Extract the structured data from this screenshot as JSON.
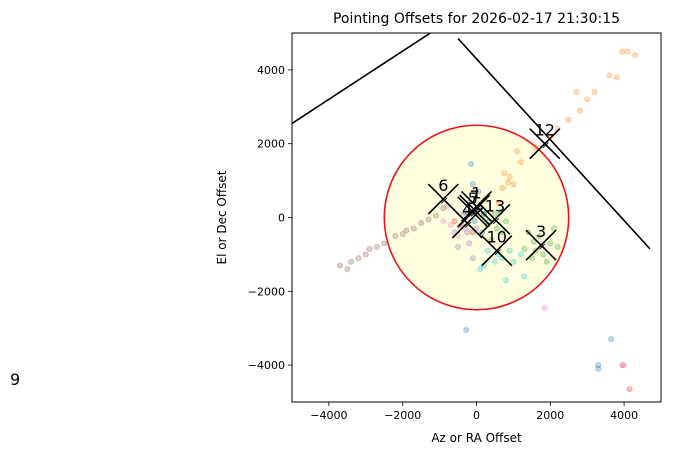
{
  "side_label": "9",
  "chart_data": {
    "type": "scatter",
    "title": "Pointing Offsets for 2026-02-17 21:30:15",
    "xlabel": "Az or RA Offset",
    "ylabel": "El or Dec Offset",
    "xlim": [
      -5000,
      5000
    ],
    "ylim": [
      -5000,
      5000
    ],
    "xticks": [
      -4000,
      -2000,
      0,
      2000,
      4000
    ],
    "yticks": [
      -4000,
      -2000,
      0,
      2000,
      4000
    ],
    "grid": false,
    "circle": {
      "center": [
        0,
        0
      ],
      "radius": 2500,
      "edge_color": "#e8141c",
      "fill_color": "#ffffe0"
    },
    "boundary_lines": [
      {
        "points": [
          [
            -5000,
            2550
          ],
          [
            -1250,
            5000
          ]
        ]
      },
      {
        "points": [
          [
            -500,
            4850
          ],
          [
            4700,
            -850
          ]
        ]
      }
    ],
    "clusters": [
      {
        "label": "1",
        "center": [
          0,
          300
        ],
        "color": "#1f77b4",
        "points": [
          [
            -150,
            1450
          ],
          [
            -100,
            900
          ],
          [
            50,
            700
          ],
          [
            -200,
            400
          ],
          [
            100,
            250
          ],
          [
            -50,
            -100
          ],
          [
            200,
            100
          ],
          [
            -300,
            150
          ],
          [
            3300,
            -4000
          ],
          [
            3300,
            -4100
          ],
          [
            3650,
            -3300
          ],
          [
            -280,
            -3050
          ],
          [
            150,
            -400
          ]
        ]
      },
      {
        "label": "12",
        "center": [
          1850,
          2000
        ],
        "color": "#ff7f0e",
        "points": [
          [
            3950,
            4500
          ],
          [
            4100,
            4500
          ],
          [
            4300,
            4400
          ],
          [
            3800,
            3800
          ],
          [
            3600,
            3850
          ],
          [
            3200,
            3400
          ],
          [
            3000,
            3200
          ],
          [
            2700,
            3400
          ],
          [
            2800,
            2900
          ],
          [
            2500,
            2650
          ],
          [
            2200,
            2400
          ],
          [
            2000,
            2200
          ],
          [
            1600,
            1900
          ],
          [
            1200,
            1500
          ],
          [
            900,
            1100
          ],
          [
            1000,
            900
          ],
          [
            700,
            800
          ],
          [
            600,
            400
          ],
          [
            1100,
            1800
          ],
          [
            750,
            1200
          ],
          [
            850,
            950
          ]
        ]
      },
      {
        "label": "3",
        "center": [
          1750,
          -750
        ],
        "color": "#2ca02c",
        "points": [
          [
            1400,
            -400
          ],
          [
            1600,
            -900
          ],
          [
            2000,
            -700
          ],
          [
            1900,
            -1200
          ],
          [
            1500,
            -1100
          ],
          [
            2100,
            -300
          ],
          [
            1700,
            -500
          ],
          [
            1800,
            -1000
          ],
          [
            2200,
            -800
          ],
          [
            1550,
            -650
          ],
          [
            1300,
            -850
          ]
        ]
      },
      {
        "label": "13",
        "center": [
          500,
          -50
        ],
        "color": "#2ca02c",
        "points": [
          [
            300,
            -200
          ],
          [
            500,
            100
          ],
          [
            700,
            -400
          ],
          [
            400,
            -600
          ],
          [
            200,
            100
          ],
          [
            650,
            150
          ],
          [
            550,
            -300
          ],
          [
            350,
            -100
          ],
          [
            800,
            -100
          ]
        ]
      },
      {
        "label": "4",
        "center": [
          -250,
          -150
        ],
        "color": "#d62728",
        "points": [
          [
            -400,
            -200
          ],
          [
            -200,
            100
          ],
          [
            -600,
            -100
          ],
          [
            -100,
            -400
          ],
          [
            3950,
            -4000
          ],
          [
            4150,
            -4650
          ]
        ]
      },
      {
        "label": "5",
        "center": [
          -100,
          150
        ],
        "color": "#9467bd",
        "points": [
          [
            -350,
            100
          ],
          [
            -600,
            -400
          ],
          [
            -200,
            -700
          ],
          [
            -100,
            -1100
          ],
          [
            -500,
            -800
          ],
          [
            -450,
            -250
          ],
          [
            -250,
            -400
          ],
          [
            0,
            -300
          ]
        ]
      },
      {
        "label": "6",
        "center": [
          -900,
          500
        ],
        "color": "#8c564b",
        "points": [
          [
            -3500,
            -1400
          ],
          [
            -3700,
            -1300
          ],
          [
            -3200,
            -1100
          ],
          [
            -3000,
            -1000
          ],
          [
            -2700,
            -800
          ],
          [
            -2500,
            -700
          ],
          [
            -2200,
            -500
          ],
          [
            -2000,
            -450
          ],
          [
            -1700,
            -300
          ],
          [
            -1500,
            -150
          ],
          [
            -1300,
            -50
          ],
          [
            -1100,
            50
          ],
          [
            -900,
            250
          ],
          [
            -3400,
            -1200
          ],
          [
            -2900,
            -850
          ],
          [
            -1900,
            -350
          ]
        ]
      },
      {
        "label": "7",
        "center": [
          -50,
          200
        ],
        "color": "#e377c2",
        "points": [
          [
            -700,
            -200
          ],
          [
            -800,
            300
          ],
          [
            -500,
            -500
          ],
          [
            -900,
            -100
          ],
          [
            -300,
            -300
          ],
          [
            4000,
            -4000
          ],
          [
            1850,
            -2450
          ]
        ]
      },
      {
        "label": "10",
        "center": [
          550,
          -900
        ],
        "color": "#17becf",
        "points": [
          [
            200,
            -1300
          ],
          [
            500,
            -1200
          ],
          [
            700,
            -1100
          ],
          [
            900,
            -900
          ],
          [
            1200,
            -1000
          ],
          [
            1300,
            -1600
          ],
          [
            100,
            -1400
          ],
          [
            800,
            -1700
          ],
          [
            300,
            -900
          ],
          [
            600,
            -1000
          ],
          [
            1000,
            -1200
          ]
        ]
      }
    ]
  }
}
